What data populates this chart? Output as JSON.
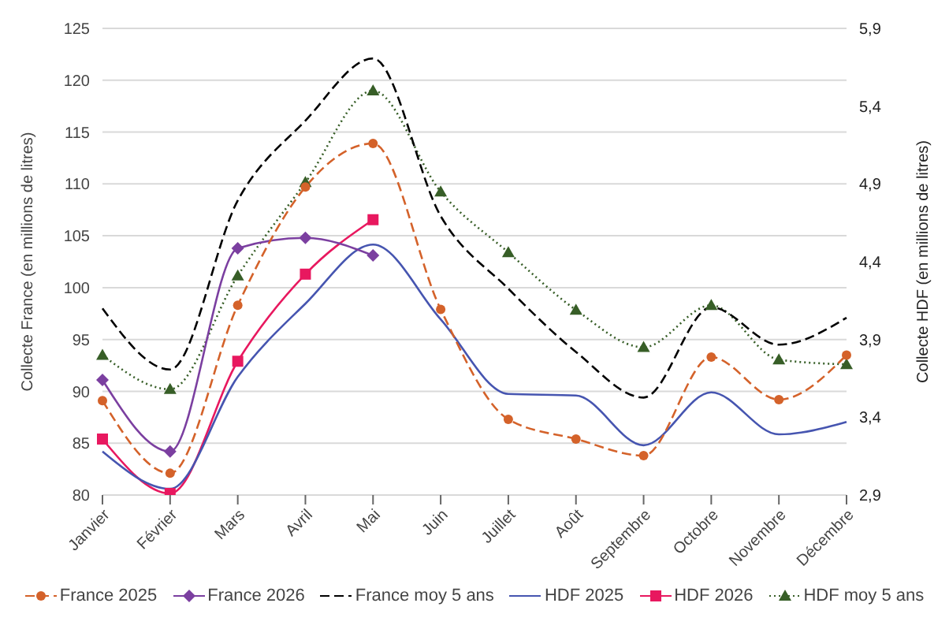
{
  "chart_data": {
    "type": "line",
    "ylabel": "Collecte France (en millions de litres)",
    "y2label": "Collecte HDF (en millions de litres)",
    "categories": [
      "Janvier",
      "Février",
      "Mars",
      "Avril",
      "Mai",
      "Juin",
      "Juillet",
      "Août",
      "Septembre",
      "Octobre",
      "Novembre",
      "Décembre"
    ],
    "ylim": [
      80,
      125
    ],
    "yticks": [
      80,
      85,
      90,
      95,
      100,
      105,
      110,
      115,
      120,
      125
    ],
    "y2lim": [
      2.9,
      5.9
    ],
    "y2ticks": [
      {
        "value": 2.9,
        "label": "2,9"
      },
      {
        "value": 3.4,
        "label": "3,4"
      },
      {
        "value": 3.9,
        "label": "3,9"
      },
      {
        "value": 4.4,
        "label": "4,4"
      },
      {
        "value": 4.9,
        "label": "4,9"
      },
      {
        "value": 5.4,
        "label": "5,4"
      },
      {
        "value": 5.9,
        "label": "5,9"
      }
    ],
    "grid": "y",
    "legend": "bottom",
    "series": [
      {
        "name": "France 2025",
        "color": "#d4622a",
        "marker": "circle",
        "line_style": "dashed",
        "values": [
          89.1,
          82.1,
          98.3,
          109.7,
          113.9,
          97.9,
          87.3,
          85.4,
          83.8,
          93.3,
          89.2,
          93.5
        ]
      },
      {
        "name": "France 2026",
        "color": "#7b3fa0",
        "marker": "diamond",
        "line_style": "solid",
        "values": [
          91.1,
          84.2,
          103.8,
          104.8,
          103.1,
          null,
          null,
          null,
          null,
          null,
          null,
          null
        ]
      },
      {
        "name": "France moy 5 ans",
        "color": "#000000",
        "marker": "none",
        "line_style": "dashed",
        "values": [
          98.0,
          92.1,
          108.4,
          116.1,
          122.1,
          106.9,
          99.9,
          93.8,
          89.4,
          98.1,
          94.5,
          97.1
        ]
      },
      {
        "name": "HDF 2025",
        "color": "#4655b0",
        "marker": "none",
        "line_style": "solid",
        "axis": "y2",
        "values": [
          3.18,
          2.94,
          3.66,
          4.13,
          4.51,
          4.03,
          3.55,
          3.54,
          3.22,
          3.56,
          3.29,
          3.37
        ]
      },
      {
        "name": "HDF 2026",
        "color": "#e8185f",
        "marker": "square",
        "line_style": "solid",
        "axis": "y2",
        "values": [
          3.26,
          2.91,
          3.76,
          4.32,
          4.67,
          null,
          null,
          null,
          null,
          null,
          null,
          null
        ]
      },
      {
        "name": "HDF moy 5 ans",
        "color": "#375e27",
        "marker": "triangle",
        "line_style": "dotted",
        "axis": "y2",
        "values": [
          3.8,
          3.58,
          4.31,
          4.91,
          5.5,
          4.85,
          4.46,
          4.09,
          3.85,
          4.12,
          3.77,
          3.74
        ]
      }
    ]
  }
}
